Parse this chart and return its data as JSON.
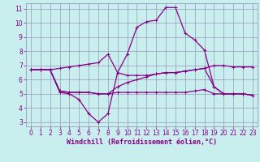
{
  "xlabel": "Windchill (Refroidissement éolien,°C)",
  "ylabel": "",
  "bg_color": "#c8eeee",
  "grid_color": "#9999bb",
  "line_color": "#880088",
  "xlim": [
    -0.5,
    23.5
  ],
  "ylim": [
    2.7,
    11.4
  ],
  "yticks": [
    3,
    4,
    5,
    6,
    7,
    8,
    9,
    10,
    11
  ],
  "xticks": [
    0,
    1,
    2,
    3,
    4,
    5,
    6,
    7,
    8,
    9,
    10,
    11,
    12,
    13,
    14,
    15,
    16,
    17,
    18,
    19,
    20,
    21,
    22,
    23
  ],
  "series1_x": [
    0,
    1,
    2,
    3,
    4,
    5,
    6,
    7,
    8,
    9,
    10,
    11,
    12,
    13,
    14,
    15,
    16,
    17,
    18,
    19,
    20,
    21,
    22,
    23
  ],
  "series1_y": [
    6.7,
    6.7,
    6.7,
    6.8,
    6.9,
    7.0,
    7.1,
    7.2,
    7.8,
    6.5,
    6.3,
    6.3,
    6.3,
    6.4,
    6.5,
    6.5,
    6.6,
    6.7,
    6.8,
    7.0,
    7.0,
    6.9,
    6.9,
    6.9
  ],
  "series2_x": [
    0,
    1,
    2,
    3,
    4,
    5,
    6,
    7,
    8,
    9,
    10,
    11,
    12,
    13,
    14,
    15,
    16,
    17,
    18,
    19,
    20,
    21,
    22,
    23
  ],
  "series2_y": [
    6.7,
    6.7,
    6.7,
    5.1,
    5.0,
    4.6,
    3.6,
    3.0,
    3.6,
    6.5,
    7.8,
    9.7,
    10.1,
    10.2,
    11.1,
    11.1,
    9.3,
    8.8,
    8.1,
    5.5,
    5.0,
    5.0,
    5.0,
    4.9
  ],
  "series3_x": [
    0,
    1,
    2,
    3,
    4,
    5,
    6,
    7,
    8,
    9,
    10,
    11,
    12,
    13,
    14,
    15,
    16,
    17,
    18,
    19,
    20,
    21,
    22,
    23
  ],
  "series3_y": [
    6.7,
    6.7,
    6.7,
    5.2,
    5.1,
    5.1,
    5.1,
    5.0,
    5.0,
    5.1,
    5.1,
    5.1,
    5.1,
    5.1,
    5.1,
    5.1,
    5.1,
    5.2,
    5.3,
    5.0,
    5.0,
    5.0,
    5.0,
    4.9
  ],
  "series4_x": [
    0,
    1,
    2,
    3,
    4,
    5,
    6,
    7,
    8,
    9,
    10,
    11,
    12,
    13,
    14,
    15,
    16,
    17,
    18,
    19,
    20,
    21,
    22,
    23
  ],
  "series4_y": [
    6.7,
    6.7,
    6.7,
    5.2,
    5.1,
    5.1,
    5.1,
    5.0,
    5.0,
    5.5,
    5.8,
    6.0,
    6.2,
    6.4,
    6.5,
    6.5,
    6.6,
    6.7,
    6.8,
    5.5,
    5.0,
    5.0,
    5.0,
    4.9
  ],
  "marker_size": 2.5,
  "line_width": 0.9,
  "xlabel_fontsize": 6.0,
  "tick_fontsize": 5.5
}
